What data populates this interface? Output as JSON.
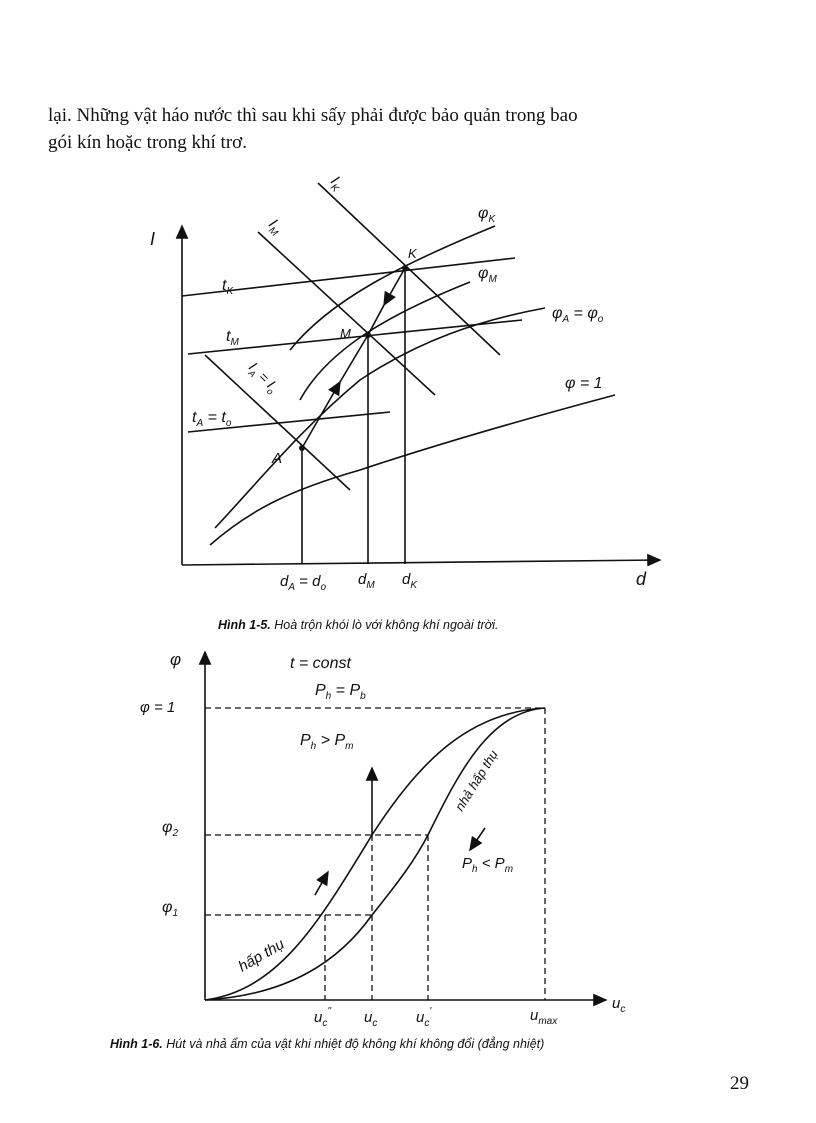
{
  "body_text": {
    "line1": "lại. Những vật háo nước thì sau khi sấy phải được bảo quản trong bao",
    "line2": "gói kín hoặc trong khí trơ."
  },
  "figure_1_5": {
    "caption_label": "Hình 1-5.",
    "caption_text": " Hoà trộn khói lò với không khí ngoài trời.",
    "y_axis": "I",
    "x_axis": "d",
    "tK": {
      "main": "t",
      "sub": "K"
    },
    "tM": {
      "main": "t",
      "sub": "M"
    },
    "tA": {
      "main": "t",
      "sub": "A",
      "eq": " = t",
      "sub2": "o"
    },
    "IK": {
      "main": "I",
      "sub": "K"
    },
    "IM": {
      "main": "I",
      "sub": "M"
    },
    "IA": {
      "main": "I",
      "sub": "A",
      "eq": " = I",
      "sub2": "o"
    },
    "phiK": {
      "main": "φ",
      "sub": "K"
    },
    "phiM": {
      "main": "φ",
      "sub": "M"
    },
    "phiA": {
      "main": "φ",
      "sub": "A",
      "eq": " = φ",
      "sub2": "o"
    },
    "phi1": "φ = 1",
    "point_K": "K",
    "point_M": "M",
    "point_A": "A",
    "dA": {
      "main": "d",
      "sub": "A",
      "eq": " = d",
      "sub2": "o"
    },
    "dM": {
      "main": "d",
      "sub": "M"
    },
    "dK": {
      "main": "d",
      "sub": "K"
    }
  },
  "figure_1_6": {
    "caption_label": "Hình 1-6.",
    "caption_text": " Hút và nhả ẩm của vật khi nhiệt độ không khí không đổi (đẳng nhiệt)",
    "y_axis": "φ",
    "x_axis": {
      "main": "u",
      "sub": "c"
    },
    "t_const": "t = const",
    "Ph_eq_Pb": {
      "main": "P",
      "sub": "h",
      "eq": " = P",
      "sub2": "b"
    },
    "Ph_gt_Pm": {
      "main": "P",
      "sub": "h",
      "eq": " > P",
      "sub2": "m"
    },
    "Ph_lt_Pm": {
      "main": "P",
      "sub": "h",
      "eq": " < P",
      "sub2": "m"
    },
    "phi_1": "φ = 1",
    "phi2": {
      "main": "φ",
      "sub": "2"
    },
    "phi1": {
      "main": "φ",
      "sub": "1"
    },
    "absorb": "hấp thụ",
    "release": "nhả hấp thụ",
    "uc2": {
      "main": "u",
      "sub": "c",
      "sup": "''"
    },
    "uc": {
      "main": "u",
      "sub": "c"
    },
    "uc1": {
      "main": "u",
      "sub": "c",
      "sup": "'"
    },
    "umax": {
      "main": "u",
      "sub": "max"
    }
  },
  "page_number": "29"
}
